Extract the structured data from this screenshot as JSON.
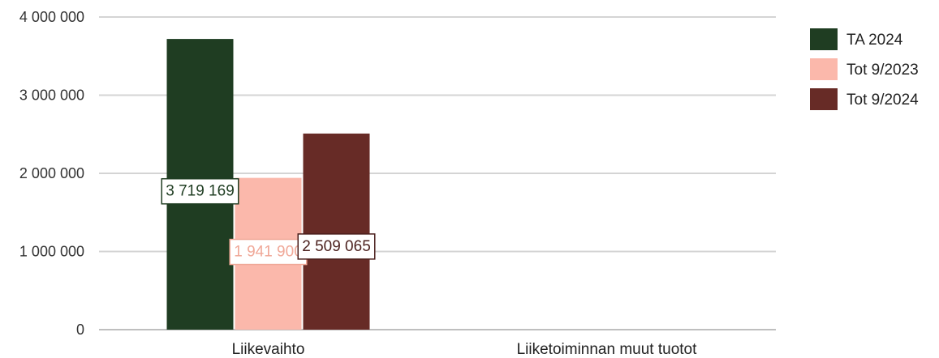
{
  "chart_data": {
    "type": "bar",
    "title": "",
    "xlabel": "",
    "ylabel": "",
    "categories": [
      "Liikevaihto",
      "Liiketoiminnan muut tuotot"
    ],
    "series": [
      {
        "name": "TA 2024",
        "values": [
          3719169,
          null
        ],
        "color": "#1f3d22",
        "label_color": "#1f3d22"
      },
      {
        "name": "Tot 9/2023",
        "values": [
          1941900,
          null
        ],
        "color": "#fbb8ab",
        "label_color": "#f0a898"
      },
      {
        "name": "Tot 9/2024",
        "values": [
          2509065,
          null
        ],
        "color": "#672b26",
        "label_color": "#4a1f1c"
      }
    ],
    "data_labels": [
      "3 719 169",
      "1 941 900",
      "2 509 065"
    ],
    "ylim": [
      0,
      4000000
    ],
    "yticks": [
      0,
      1000000,
      2000000,
      3000000,
      4000000
    ],
    "ytick_labels": [
      "0",
      "1 000 000",
      "2 000 000",
      "3 000 000",
      "4 000 000"
    ],
    "grid": true,
    "legend_position": "right"
  }
}
